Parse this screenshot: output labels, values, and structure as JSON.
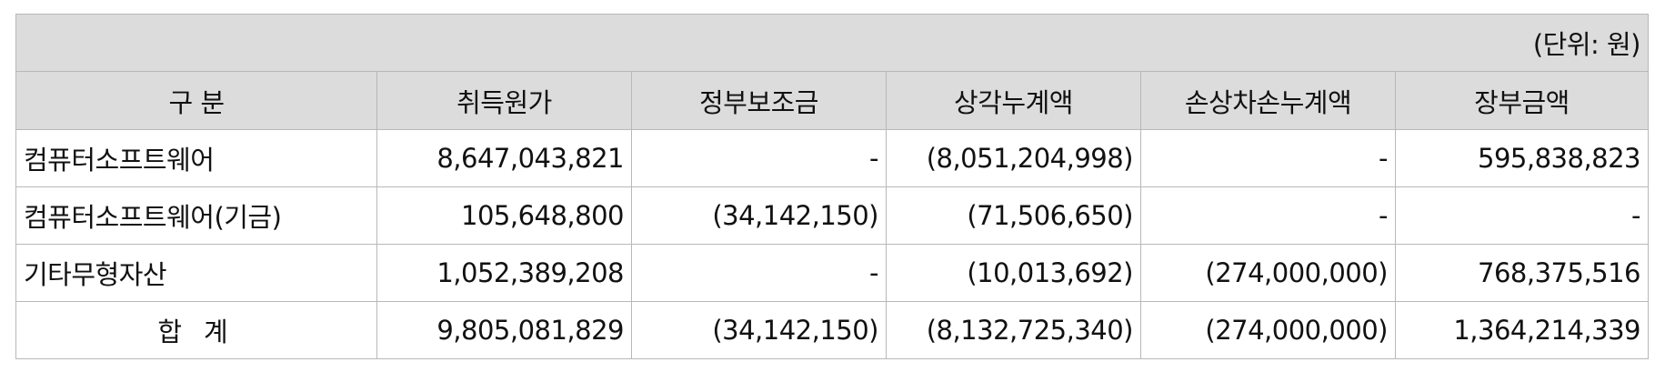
{
  "unit_label": "(단위: 원)",
  "columns": [
    "구 분",
    "취득원가",
    "정부보조금",
    "상각누계액",
    "손상차손누계액",
    "장부금액"
  ],
  "rows": [
    {
      "label": "컴퓨터소프트웨어",
      "cells": [
        "8,647,043,821",
        "-",
        "(8,051,204,998)",
        "-",
        "595,838,823"
      ]
    },
    {
      "label": "컴퓨터소프트웨어(기금)",
      "cells": [
        "105,648,800",
        "(34,142,150)",
        "(71,506,650)",
        "-",
        "-"
      ]
    },
    {
      "label": "기타무형자산",
      "cells": [
        "1,052,389,208",
        "-",
        "(10,013,692)",
        "(274,000,000)",
        "768,375,516"
      ]
    }
  ],
  "total": {
    "label": "합계",
    "cells": [
      "9,805,081,829",
      "(34,142,150)",
      "(8,132,725,340)",
      "(274,000,000)",
      "1,364,214,339"
    ]
  }
}
